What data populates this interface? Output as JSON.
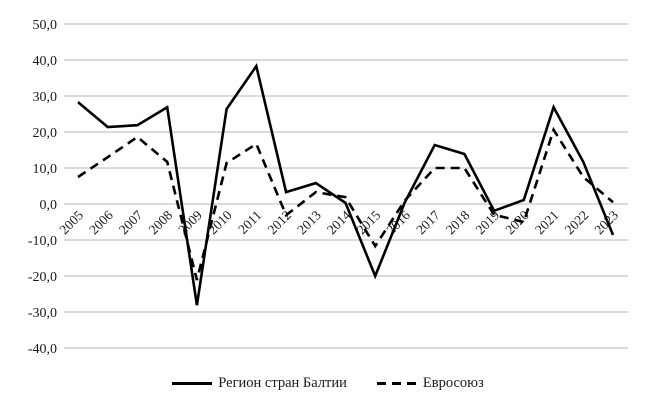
{
  "chart_data": {
    "type": "line",
    "title": "",
    "xlabel": "",
    "ylabel": "",
    "x": [
      "2005",
      "2006",
      "2007",
      "2008",
      "2009",
      "2010",
      "2011",
      "2012",
      "2013",
      "2014",
      "2015",
      "2016",
      "2017",
      "2018",
      "2019",
      "2020",
      "2021",
      "2022",
      "2023"
    ],
    "series": [
      {
        "name": "Регион стран Балтии",
        "style": "solid",
        "values": [
          28.3,
          21.4,
          21.9,
          26.9,
          -28.1,
          26.4,
          38.3,
          3.3,
          5.8,
          0.3,
          -20.0,
          0.5,
          16.4,
          13.9,
          -1.9,
          1.1,
          26.9,
          11.7,
          -8.6
        ]
      },
      {
        "name": "Евросоюз",
        "style": "dashed",
        "values": [
          7.5,
          13.0,
          18.6,
          11.7,
          -21.1,
          11.4,
          16.7,
          -3.1,
          3.3,
          1.9,
          -11.7,
          1.0,
          10.0,
          10.0,
          -3.0,
          -5.0,
          20.6,
          7.5,
          0.5
        ]
      }
    ],
    "yticks": [
      "50,0",
      "40,0",
      "30,0",
      "20,0",
      "10,0",
      "0,0",
      "-10,0",
      "-20,0",
      "-30,0",
      "-40,0"
    ],
    "ytick_values": [
      50,
      40,
      30,
      20,
      10,
      0,
      -10,
      -20,
      -30,
      -40
    ],
    "ylim": [
      -40,
      50
    ],
    "grid": true,
    "legend_position": "bottom",
    "colors": {
      "line": "#000000",
      "grid": "#cfcfcf"
    }
  },
  "legend": {
    "items": [
      {
        "label": "Регион стран Балтии",
        "style": "solid"
      },
      {
        "label": "Евросоюз",
        "style": "dashed"
      }
    ]
  }
}
